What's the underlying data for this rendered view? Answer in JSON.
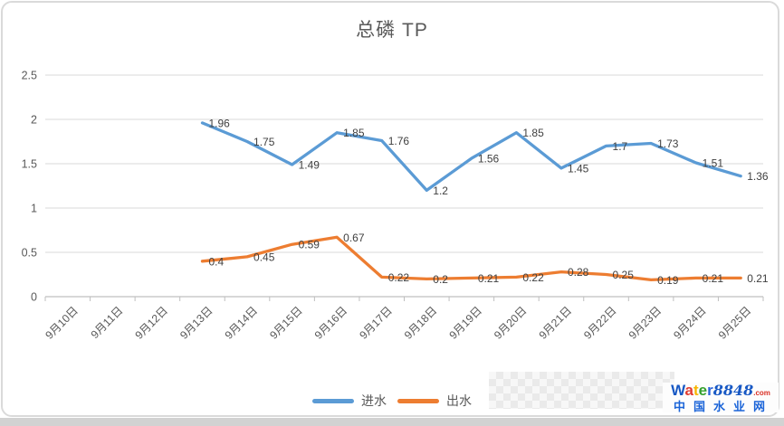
{
  "chart_data": {
    "type": "line",
    "title": "总磷 TP",
    "categories": [
      "9月10日",
      "9月11日",
      "9月12日",
      "9月13日",
      "9月14日",
      "9月15日",
      "9月16日",
      "9月17日",
      "9月18日",
      "9月19日",
      "9月20日",
      "9月21日",
      "9月22日",
      "9月23日",
      "9月24日",
      "9月25日"
    ],
    "series": [
      {
        "id": "influent",
        "name": "进水",
        "color": "#5B9BD5",
        "start_index": 3,
        "values": [
          1.96,
          1.75,
          1.49,
          1.85,
          1.76,
          1.2,
          1.56,
          1.85,
          1.45,
          1.7,
          1.73,
          1.51,
          1.36
        ]
      },
      {
        "id": "effluent",
        "name": "出水",
        "color": "#ED7D31",
        "start_index": 3,
        "values": [
          0.4,
          0.45,
          0.59,
          0.67,
          0.22,
          0.2,
          0.21,
          0.22,
          0.28,
          0.25,
          0.19,
          0.21,
          0.21
        ]
      }
    ],
    "ylim": [
      0,
      2.5
    ],
    "ytick_step": 0.5,
    "ytick_labels": [
      "0",
      "0.5",
      "1",
      "1.5",
      "2",
      "2.5"
    ],
    "grid": true,
    "data_labels": true,
    "legend_position": "bottom",
    "axis_color": "#BFBFBF",
    "gridline_color": "#D9D9D9",
    "tick_label_color": "#595959",
    "data_label_color": "#404040"
  },
  "legend": [
    {
      "id": "influent",
      "label": "进水",
      "color": "#5B9BD5"
    },
    {
      "id": "effluent",
      "label": "出水",
      "color": "#ED7D31"
    }
  ],
  "watermark": {
    "brand_letters": [
      {
        "ch": "W",
        "color": "#1758c4"
      },
      {
        "ch": "a",
        "color": "#e23b30"
      },
      {
        "ch": "t",
        "color": "#f7b500"
      },
      {
        "ch": "e",
        "color": "#34a02c"
      },
      {
        "ch": "r",
        "color": "#2a62d9"
      }
    ],
    "brand_suffix": "8848",
    "brand_tld": ".com",
    "subtitle": "中国水业网"
  }
}
